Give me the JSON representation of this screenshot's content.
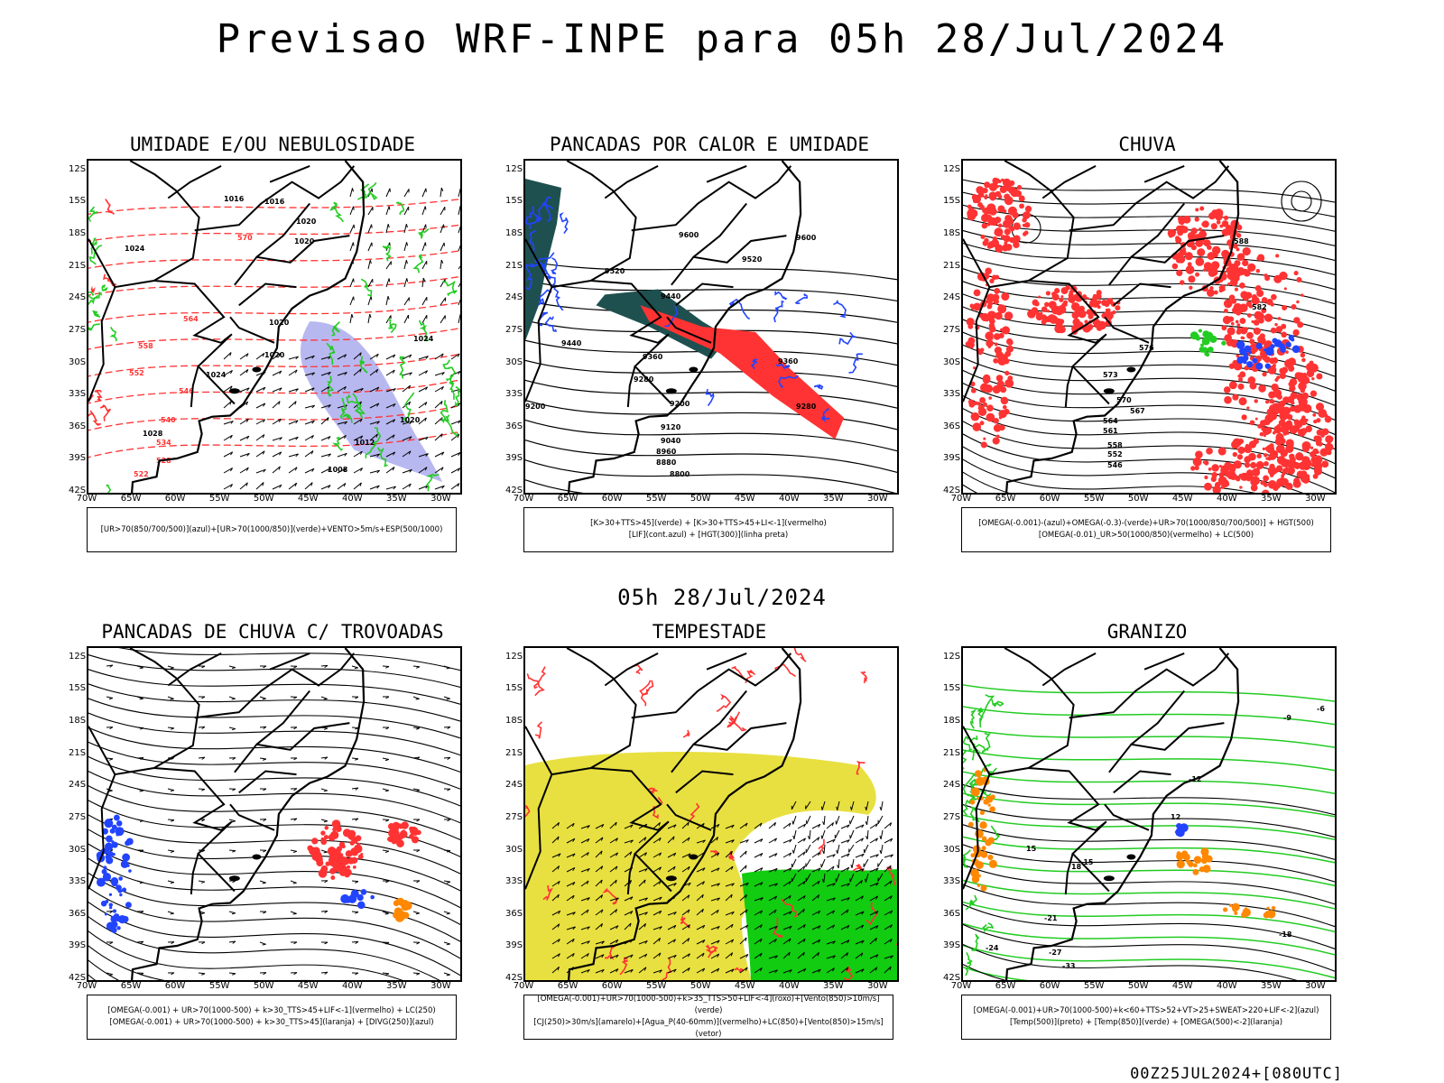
{
  "title": "Previsao WRF-INPE  para 05h 28/Jul/2024",
  "mid_title": "05h 28/Jul/2024",
  "footer": "00Z25JUL2024+[080UTC]",
  "lat_labels": [
    "12S",
    "15S",
    "18S",
    "21S",
    "24S",
    "27S",
    "30S",
    "33S",
    "36S",
    "39S",
    "42S"
  ],
  "lon_labels": [
    "70W",
    "65W",
    "60W",
    "55W",
    "50W",
    "45W",
    "40W",
    "35W",
    "30W"
  ],
  "panels": [
    {
      "title": "UMIDADE E/OU NEBULOSIDADE",
      "legend": [
        "[UR>70(850/700/500)](azul)+[UR>70(1000/850)](verde)+VENTO>5m/s+ESP(500/1000)"
      ]
    },
    {
      "title": "PANCADAS POR CALOR E UMIDADE",
      "legend": [
        "[K>30+TTS>45](verde) + [K>30+TTS>45+LI<-1](vermelho)",
        "[LIF](cont.azul) + [HGT(300)](linha preta)"
      ]
    },
    {
      "title": "CHUVA",
      "legend": [
        "[OMEGA(-0.001)-(azul)+OMEGA(-0.3)-(verde)+UR>70(1000/850/700/500)] + HGT(500)",
        "[OMEGA(-0.01)_UR>50(1000/850)(vermelho) + LC(500)"
      ]
    },
    {
      "title": "PANCADAS DE CHUVA C/ TROVOADAS",
      "legend": [
        "[OMEGA(-0.001) + UR>70(1000-500) + k>30_TTS>45+LIF<-1](vermelho) + LC(250)",
        "[OMEGA(-0.001) + UR>70(1000-500) + k>30_TTS>45](laranja) + [DIVG(250)](azul)"
      ]
    },
    {
      "title": "TEMPESTADE",
      "legend": [
        "[OMEGA(-0.001)+UR>70(1000-500)+k>35_TTS>50+LIF<-4](roxo)+[Vento(850)>10m/s](verde)",
        "[CJ(250)>30m/s](amarelo)+[Agua_P(40-60mm)](vermelho)+LC(850)+[Vento(850)>15m/s](vetor)"
      ]
    },
    {
      "title": "GRANIZO",
      "legend": [
        "[OMEGA(-0.001)+UR>70(1000-500)+k<60+TTS>52+VT>25+SWEAT>220+LIF<-2](azul)",
        "[Temp(500)](preto) + [Temp(850)](verde) + [OMEGA(500)<-2](laranja)"
      ]
    }
  ],
  "contour_labels": {
    "p0": [
      "1016",
      "1016",
      "1020",
      "1020",
      "1024",
      "1020",
      "1020",
      "1024",
      "1028",
      "1012",
      "1008",
      "1020",
      "1024",
      "570",
      "564",
      "558",
      "552",
      "546",
      "540",
      "534",
      "528",
      "522"
    ],
    "p1": [
      "9600",
      "9600",
      "9520",
      "9520",
      "9440",
      "9440",
      "9360",
      "9360",
      "9280",
      "9280",
      "9200",
      "9200",
      "9120",
      "9040",
      "8960",
      "8880",
      "8800"
    ],
    "p2": [
      "588",
      "582",
      "576",
      "573",
      "570",
      "567",
      "564",
      "561",
      "558",
      "552",
      "546"
    ],
    "p5": [
      "-6",
      "-9",
      "-12",
      "-15",
      "-18",
      "-21",
      "-24",
      "-27",
      "-33",
      "12",
      "15",
      "18"
    ]
  },
  "colors": {
    "green": "#22cc22",
    "red": "#ff3333",
    "blue": "#2244ff",
    "darkteal": "#1f5050",
    "yellow": "#e8e040",
    "lavender": "#b8b8f0",
    "orange": "#ff8800",
    "bright_green": "#11cc11"
  }
}
